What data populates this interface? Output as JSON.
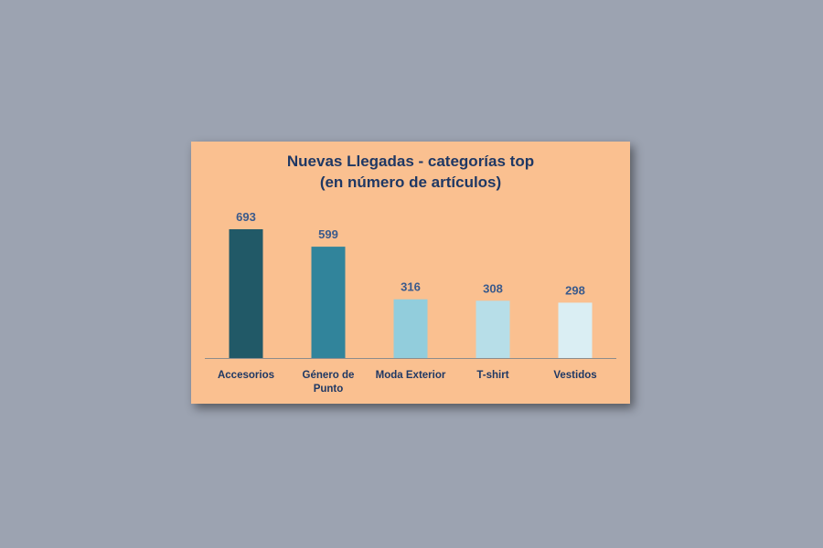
{
  "chart_data": {
    "type": "bar",
    "title_line1": "Nuevas Llegadas - categorías top",
    "title_line2": "(en número de artículos)",
    "categories": [
      [
        "Accesorios"
      ],
      [
        "Género de",
        "Punto"
      ],
      [
        "Moda Exterior"
      ],
      [
        "T-shirt"
      ],
      [
        "Vestidos"
      ]
    ],
    "values": [
      693,
      599,
      316,
      308,
      298
    ],
    "colors": [
      "#215967",
      "#31849b",
      "#92cddc",
      "#b7dee8",
      "#daeef3"
    ],
    "ylim": [
      0,
      800
    ],
    "grid": false,
    "legend": false
  }
}
